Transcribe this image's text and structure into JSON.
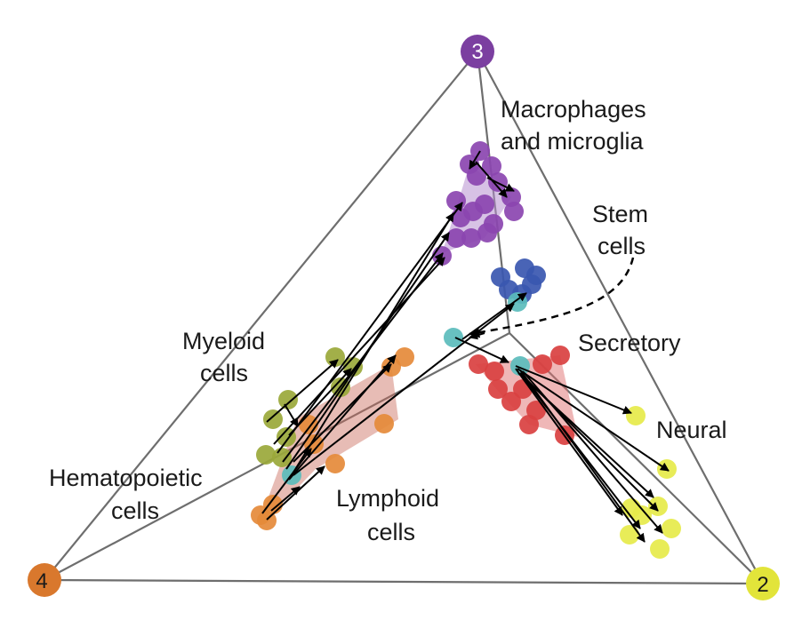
{
  "vertices": [
    {
      "id": "vertex-3",
      "label": "3",
      "color": "#7b3fa0",
      "text_color": "#ffffff"
    },
    {
      "id": "vertex-4",
      "label": "4",
      "color": "#d9782d",
      "text_color": "#1a1a1a"
    },
    {
      "id": "vertex-2",
      "label": "2",
      "color": "#e2e43a",
      "text_color": "#1a1a1a"
    }
  ],
  "labels": {
    "macrophages": [
      "Macrophages",
      "and microglia"
    ],
    "stem": [
      "Stem",
      "cells"
    ],
    "secretory": [
      "Secretory"
    ],
    "myeloid": [
      "Myeloid",
      "cells"
    ],
    "neural": [
      "Neural"
    ],
    "hematopoietic": [
      "Hematopoietic",
      "cells"
    ],
    "lymphoid": [
      "Lymphoid",
      "cells"
    ]
  },
  "cluster_colors": {
    "macrophages": "#8b45b0",
    "stem": "#3a57b0",
    "transition": "#5bbcbc",
    "myeloid": "#9aa83a",
    "lymphoid": "#e58a3a",
    "secretory": "#d94040",
    "neural": "#e6ea4a",
    "hull_macro": "#b790cf",
    "hull_lymph": "#c96a5a",
    "hull_secret": "#e07070"
  }
}
